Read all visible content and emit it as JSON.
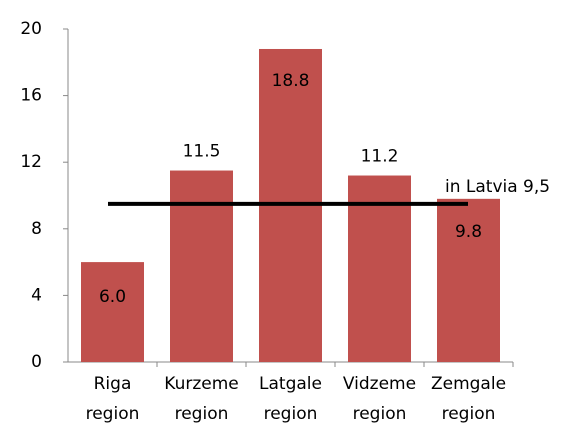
{
  "chart_data": {
    "type": "bar",
    "categories": [
      "Riga region",
      "Kurzeme region",
      "Latgale region",
      "Vidzeme region",
      "Zemgale region"
    ],
    "values": [
      6.0,
      11.5,
      18.8,
      11.2,
      9.8
    ],
    "value_labels": [
      "6.0",
      "11.5",
      "18.8",
      "11.2",
      "9.8"
    ],
    "color": "#c0504d",
    "ylim": [
      0,
      20
    ],
    "yticks": [
      0,
      4,
      8,
      12,
      16,
      20
    ],
    "grid": false,
    "reference_line": {
      "value": 9.5,
      "label": "in Latvia 9,5",
      "color": "#000000"
    }
  }
}
